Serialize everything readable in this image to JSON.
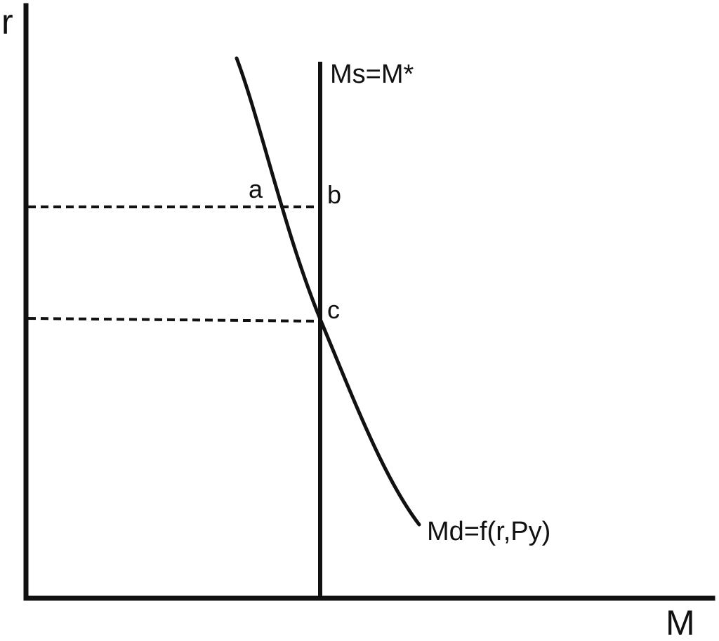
{
  "axes": {
    "y_label": "r",
    "x_label": "M"
  },
  "curves": {
    "money_supply_label": "Ms=M*",
    "money_demand_label": "Md=f(r,Py)"
  },
  "points": {
    "a": "a",
    "b": "b",
    "c": "c"
  }
}
